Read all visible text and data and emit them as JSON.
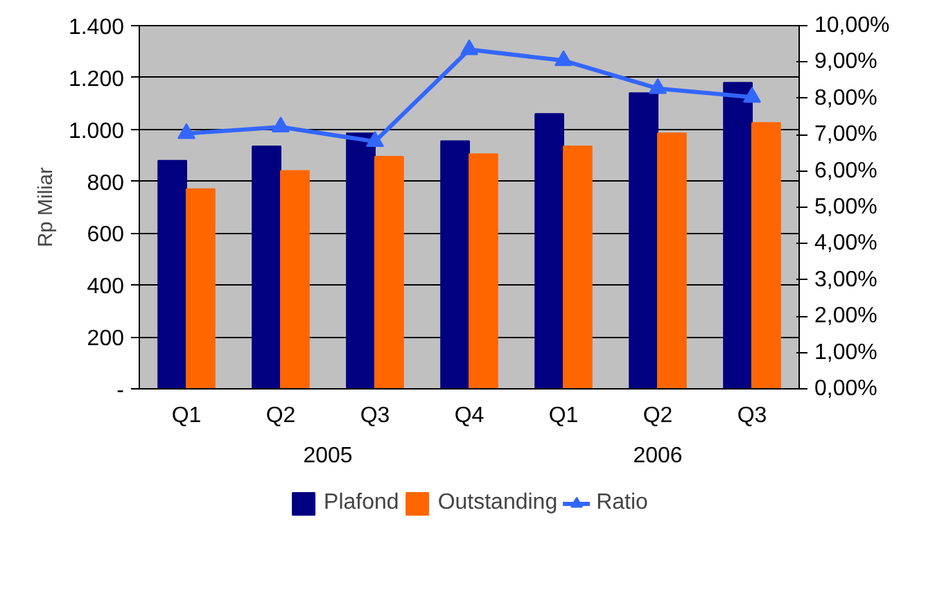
{
  "chart_data": {
    "type": "bar",
    "ylabel": "Rp Miliar",
    "categories": [
      "Q1",
      "Q2",
      "Q3",
      "Q4",
      "Q1",
      "Q2",
      "Q3"
    ],
    "annotations": [
      "2005",
      "2006"
    ],
    "series": [
      {
        "name": "Plafond",
        "color": "#000080",
        "values": [
          880,
          935,
          985,
          955,
          1060,
          1140,
          1180
        ]
      },
      {
        "name": "Outstanding",
        "color": "#ff6600",
        "values": [
          770,
          840,
          895,
          905,
          935,
          985,
          1025
        ]
      },
      {
        "name": "Ratio",
        "type": "line",
        "axis": "y2",
        "color": "#3366ff",
        "marker": "triangle",
        "values": [
          7.03,
          7.21,
          6.81,
          9.34,
          9.04,
          8.27,
          8.03
        ]
      }
    ],
    "ylim": [
      0,
      1400
    ],
    "yticks": [
      {
        "value": 0,
        "label": "-"
      },
      {
        "value": 200,
        "label": "200"
      },
      {
        "value": 400,
        "label": "400"
      },
      {
        "value": 600,
        "label": "600"
      },
      {
        "value": 800,
        "label": "800"
      },
      {
        "value": 1000,
        "label": "1.000"
      },
      {
        "value": 1200,
        "label": "1.200"
      },
      {
        "value": 1400,
        "label": "1.400"
      }
    ],
    "y2lim": [
      0,
      10
    ],
    "y2ticks": [
      {
        "value": 0,
        "label": "0,00%"
      },
      {
        "value": 1,
        "label": "1,00%"
      },
      {
        "value": 2,
        "label": "2,00%"
      },
      {
        "value": 3,
        "label": "3,00%"
      },
      {
        "value": 4,
        "label": "4,00%"
      },
      {
        "value": 5,
        "label": "5,00%"
      },
      {
        "value": 6,
        "label": "6,00%"
      },
      {
        "value": 7,
        "label": "7,00%"
      },
      {
        "value": 8,
        "label": "8,00%"
      },
      {
        "value": 9,
        "label": "9,00%"
      },
      {
        "value": 10,
        "label": "10,00%"
      }
    ],
    "grid": "y",
    "legend": "bottom"
  }
}
